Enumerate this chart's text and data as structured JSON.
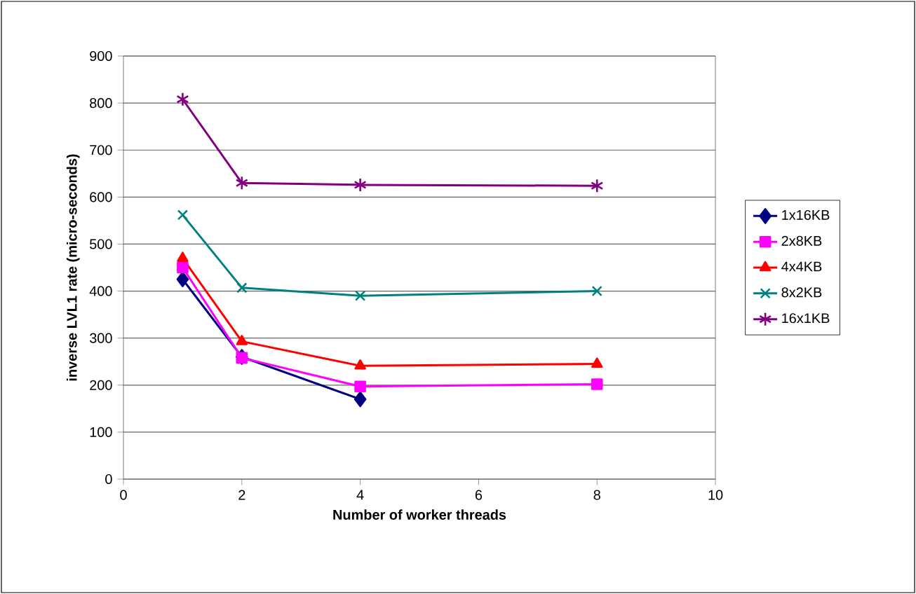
{
  "chart_data": {
    "type": "line",
    "xlabel": "Number of worker threads",
    "ylabel": "inverse LVL1 rate (micro-seconds)",
    "xlim": [
      0,
      10
    ],
    "xticks": [
      0,
      2,
      4,
      6,
      8,
      10
    ],
    "ylim": [
      0,
      900
    ],
    "yticks": [
      0,
      100,
      200,
      300,
      400,
      500,
      600,
      700,
      800,
      900
    ],
    "grid": "y",
    "legend": "right",
    "line_style": "solid",
    "series": [
      {
        "name": "1x16KB",
        "color": "#000080",
        "marker": "diamond",
        "x": [
          1,
          2,
          4
        ],
        "values": [
          425,
          260,
          170
        ]
      },
      {
        "name": "2x8KB",
        "color": "#ff00ff",
        "marker": "square",
        "x": [
          1,
          2,
          4,
          8
        ],
        "values": [
          450,
          258,
          197,
          202
        ]
      },
      {
        "name": "4x4KB",
        "color": "#ff0000",
        "marker": "triangle",
        "x": [
          1,
          2,
          4,
          8
        ],
        "values": [
          470,
          293,
          241,
          245
        ]
      },
      {
        "name": "8x2KB",
        "color": "#008080",
        "marker": "cross",
        "x": [
          1,
          2,
          4,
          8
        ],
        "values": [
          562,
          407,
          390,
          400
        ]
      },
      {
        "name": "16x1KB",
        "color": "#800080",
        "marker": "cross",
        "x": [
          1,
          2,
          4,
          8
        ],
        "values": [
          808,
          630,
          626,
          624
        ]
      }
    ]
  }
}
